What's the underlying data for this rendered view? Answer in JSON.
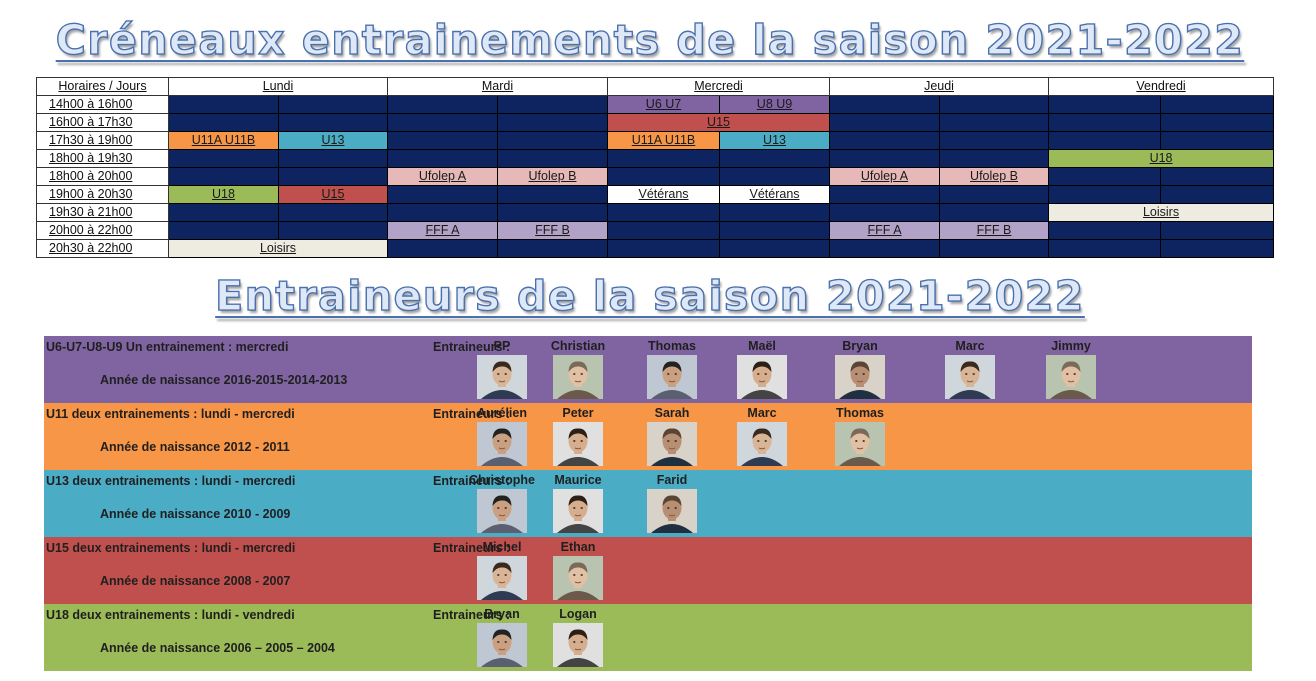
{
  "titles": {
    "schedule": "Créneaux entrainements de la saison 2021-2022",
    "coaches": "Entraineurs de la saison 2021-2022"
  },
  "schedule": {
    "corner": "Horaires / Jours",
    "days": [
      "Lundi",
      "Mardi",
      "Mercredi",
      "Jeudi",
      "Vendredi"
    ],
    "rows": [
      {
        "time": "14h00 à 16h00",
        "cells": [
          {
            "t": "",
            "c": "navy",
            "s": 1
          },
          {
            "t": "",
            "c": "navy",
            "s": 1
          },
          {
            "t": "",
            "c": "navy",
            "s": 1
          },
          {
            "t": "",
            "c": "navy",
            "s": 1
          },
          {
            "t": "U6 U7",
            "c": "purple",
            "s": 1
          },
          {
            "t": "U8 U9",
            "c": "purple",
            "s": 1
          },
          {
            "t": "",
            "c": "navy",
            "s": 1
          },
          {
            "t": "",
            "c": "navy",
            "s": 1
          },
          {
            "t": "",
            "c": "navy",
            "s": 1
          },
          {
            "t": "",
            "c": "navy",
            "s": 1
          }
        ]
      },
      {
        "time": "16h00 à 17h30",
        "cells": [
          {
            "t": "",
            "c": "navy",
            "s": 1
          },
          {
            "t": "",
            "c": "navy",
            "s": 1
          },
          {
            "t": "",
            "c": "navy",
            "s": 1
          },
          {
            "t": "",
            "c": "navy",
            "s": 1
          },
          {
            "t": "U15",
            "c": "red",
            "s": 2
          },
          {
            "t": "",
            "c": "navy",
            "s": 1
          },
          {
            "t": "",
            "c": "navy",
            "s": 1
          },
          {
            "t": "",
            "c": "navy",
            "s": 1
          },
          {
            "t": "",
            "c": "navy",
            "s": 1
          }
        ]
      },
      {
        "time": "17h30 à 19h00",
        "cells": [
          {
            "t": "U11A U11B",
            "c": "orange",
            "s": 1
          },
          {
            "t": "U13",
            "c": "cyan",
            "s": 1
          },
          {
            "t": "",
            "c": "navy",
            "s": 1
          },
          {
            "t": "",
            "c": "navy",
            "s": 1
          },
          {
            "t": "U11A U11B",
            "c": "orange",
            "s": 1
          },
          {
            "t": "U13",
            "c": "cyan",
            "s": 1
          },
          {
            "t": "",
            "c": "navy",
            "s": 1
          },
          {
            "t": "",
            "c": "navy",
            "s": 1
          },
          {
            "t": "",
            "c": "navy",
            "s": 1
          },
          {
            "t": "",
            "c": "navy",
            "s": 1
          }
        ]
      },
      {
        "time": "18h00 à 19h30",
        "cells": [
          {
            "t": "",
            "c": "navy",
            "s": 1
          },
          {
            "t": "",
            "c": "navy",
            "s": 1
          },
          {
            "t": "",
            "c": "navy",
            "s": 1
          },
          {
            "t": "",
            "c": "navy",
            "s": 1
          },
          {
            "t": "",
            "c": "navy",
            "s": 1
          },
          {
            "t": "",
            "c": "navy",
            "s": 1
          },
          {
            "t": "",
            "c": "navy",
            "s": 1
          },
          {
            "t": "",
            "c": "navy",
            "s": 1
          },
          {
            "t": "U18",
            "c": "green",
            "s": 2
          }
        ]
      },
      {
        "time": "18h00 à 20h00",
        "cells": [
          {
            "t": "",
            "c": "navy",
            "s": 1
          },
          {
            "t": "",
            "c": "navy",
            "s": 1
          },
          {
            "t": "Ufolep A",
            "c": "pink",
            "s": 1
          },
          {
            "t": "Ufolep B",
            "c": "pink",
            "s": 1
          },
          {
            "t": "",
            "c": "navy",
            "s": 1
          },
          {
            "t": "",
            "c": "navy",
            "s": 1
          },
          {
            "t": "Ufolep A",
            "c": "pink",
            "s": 1
          },
          {
            "t": "Ufolep B",
            "c": "pink",
            "s": 1
          },
          {
            "t": "",
            "c": "navy",
            "s": 1
          },
          {
            "t": "",
            "c": "navy",
            "s": 1
          }
        ]
      },
      {
        "time": "19h00 à 20h30",
        "cells": [
          {
            "t": "U18",
            "c": "green",
            "s": 1
          },
          {
            "t": "U15",
            "c": "red",
            "s": 1
          },
          {
            "t": "",
            "c": "navy",
            "s": 1
          },
          {
            "t": "",
            "c": "navy",
            "s": 1
          },
          {
            "t": "Vétérans",
            "c": "white",
            "s": 1
          },
          {
            "t": "Vétérans",
            "c": "white",
            "s": 1
          },
          {
            "t": "",
            "c": "navy",
            "s": 1
          },
          {
            "t": "",
            "c": "navy",
            "s": 1
          },
          {
            "t": "",
            "c": "navy",
            "s": 1
          },
          {
            "t": "",
            "c": "navy",
            "s": 1
          }
        ]
      },
      {
        "time": "19h30 à 21h00",
        "cells": [
          {
            "t": "",
            "c": "navy",
            "s": 1
          },
          {
            "t": "",
            "c": "navy",
            "s": 1
          },
          {
            "t": "",
            "c": "navy",
            "s": 1
          },
          {
            "t": "",
            "c": "navy",
            "s": 1
          },
          {
            "t": "",
            "c": "navy",
            "s": 1
          },
          {
            "t": "",
            "c": "navy",
            "s": 1
          },
          {
            "t": "",
            "c": "navy",
            "s": 1
          },
          {
            "t": "",
            "c": "navy",
            "s": 1
          },
          {
            "t": "Loisirs",
            "c": "cream",
            "s": 2
          }
        ]
      },
      {
        "time": "20h00 à 22h00",
        "cells": [
          {
            "t": "",
            "c": "navy",
            "s": 1
          },
          {
            "t": "",
            "c": "navy",
            "s": 1
          },
          {
            "t": "FFF A",
            "c": "lavender",
            "s": 1
          },
          {
            "t": "FFF B",
            "c": "lavender",
            "s": 1
          },
          {
            "t": "",
            "c": "navy",
            "s": 1
          },
          {
            "t": "",
            "c": "navy",
            "s": 1
          },
          {
            "t": "FFF A",
            "c": "lavender",
            "s": 1
          },
          {
            "t": "FFF B",
            "c": "lavender",
            "s": 1
          },
          {
            "t": "",
            "c": "navy",
            "s": 1
          },
          {
            "t": "",
            "c": "navy",
            "s": 1
          }
        ]
      },
      {
        "time": "20h30 à 22h00",
        "cells": [
          {
            "t": "Loisirs",
            "c": "cream",
            "s": 2
          },
          {
            "t": "",
            "c": "navy",
            "s": 1
          },
          {
            "t": "",
            "c": "navy",
            "s": 1
          },
          {
            "t": "",
            "c": "navy",
            "s": 1
          },
          {
            "t": "",
            "c": "navy",
            "s": 1
          },
          {
            "t": "",
            "c": "navy",
            "s": 1
          },
          {
            "t": "",
            "c": "navy",
            "s": 1
          },
          {
            "t": "",
            "c": "navy",
            "s": 1
          },
          {
            "t": "",
            "c": "navy",
            "s": 1
          }
        ]
      }
    ]
  },
  "colors": {
    "navy": "#0e2461",
    "purple": "#8064a2",
    "orange": "#f79646",
    "cyan": "#4bacc6",
    "red": "#c0504d",
    "green": "#9bbb59",
    "pink": "#e6b9b8",
    "lavender": "#b3a2c7",
    "white": "#ffffff",
    "cream": "#eeece1",
    "title_stroke": "#4a70ad"
  },
  "coaches": {
    "label": "Entraineurs :",
    "groups": [
      {
        "title": "U6-U7-U8-U9 Un entrainement : mercredi",
        "birth": "Année de naissance  2016-2015-2014-2013",
        "color": "purple",
        "coaches": [
          "PP",
          "Christian",
          "Thomas",
          "Maël",
          "Bryan",
          "Marc",
          "Jimmy"
        ]
      },
      {
        "title": "U11 deux entrainements : lundi - mercredi",
        "birth": "Année de naissance  2012 - 2011",
        "color": "orange",
        "coaches": [
          "Aurélien",
          "Peter",
          "Sarah",
          "Marc",
          "Thomas"
        ]
      },
      {
        "title": "U13 deux entrainements : lundi -  mercredi",
        "birth": "Année de naissance  2010 - 2009",
        "color": "cyan",
        "coaches": [
          "Christophe",
          "Maurice",
          "Farid"
        ]
      },
      {
        "title": "U15 deux entrainements : lundi - mercredi",
        "birth": "Année de naissance  2008 - 2007",
        "color": "red",
        "coaches": [
          "Michel",
          "Ethan"
        ]
      },
      {
        "title": "U18 deux entrainements : lundi - vendredi",
        "birth": "Année de naissance  2006 – 2005 – 2004",
        "color": "green",
        "coaches": [
          "Bryan",
          "Logan"
        ]
      }
    ]
  }
}
